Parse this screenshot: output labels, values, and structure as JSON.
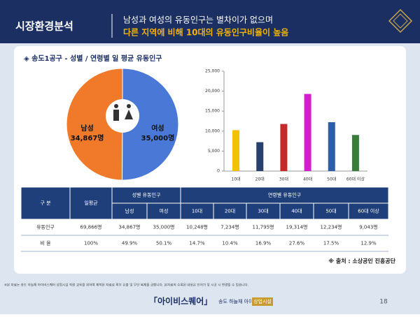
{
  "header": {
    "title": "시장환경분석",
    "line1": "남성과 여성의 유동인구는 별차이가 없으며",
    "line2": "다른 지역에 비해 10대의 유동인구비율이 높음"
  },
  "section_title": "◈ 송도1공구 - 성별 / 연령별 일 평균 유동인구",
  "chart_data": [
    {
      "type": "pie",
      "categories": [
        "남성",
        "여성"
      ],
      "values": [
        34867,
        35000
      ],
      "value_labels": [
        "34,867명",
        "35,000명"
      ],
      "colors": [
        "#f07a2a",
        "#4a78d6"
      ]
    },
    {
      "type": "bar",
      "categories": [
        "10대",
        "20대",
        "30대",
        "40대",
        "50대",
        "60대 이상"
      ],
      "values": [
        10248,
        7234,
        11795,
        19314,
        12234,
        9043
      ],
      "colors": [
        "#f2c100",
        "#27406e",
        "#c42a2a",
        "#d21ecf",
        "#2e5ca8",
        "#3a7d3a"
      ],
      "ylim": [
        0,
        25000
      ],
      "yticks": [
        0,
        {
          "value": 5000,
          "label": "5,000"
        },
        {
          "value": 10000,
          "label": "10,000"
        },
        {
          "value": 15000,
          "label": "15,000"
        },
        {
          "value": 20000,
          "label": "20,000"
        },
        {
          "value": 25000,
          "label": "25,000"
        }
      ],
      "grid": false
    }
  ],
  "table": {
    "header1": [
      "구 분",
      "일평균",
      "성별 유동인구",
      "연령별 유동인구"
    ],
    "header2": [
      "남성",
      "여성",
      "10대",
      "20대",
      "30대",
      "40대",
      "50대",
      "60대 이상"
    ],
    "rows": [
      [
        "유동인구",
        "69,866명",
        "34,867명",
        "35,000명",
        "10,248명",
        "7,234명",
        "11,795명",
        "19,314명",
        "12,234명",
        "9,043명"
      ],
      [
        "비 율",
        "100%",
        "49.9%",
        "50.1%",
        "14.7%",
        "10.4%",
        "16.9%",
        "27.6%",
        "17.5%",
        "12.9%"
      ]
    ]
  },
  "source": "※ 출처 : 소상공인 진흥공단",
  "footnote": "※본 자료는 송도 하늘채 아이비스퀘어 상업시설 직원 교육을 위하여 제작된 자료로 외부 유출 및 무단 복제를 금합니다. 본자료의 수록된 내용은 인허가 및 시공 시 변경될 수 있습니다.",
  "footer": {
    "brand": "「아이비스퀘어」",
    "sub": "송도 하늘채 아이비원",
    "tag": "상업시설",
    "page": "18"
  }
}
